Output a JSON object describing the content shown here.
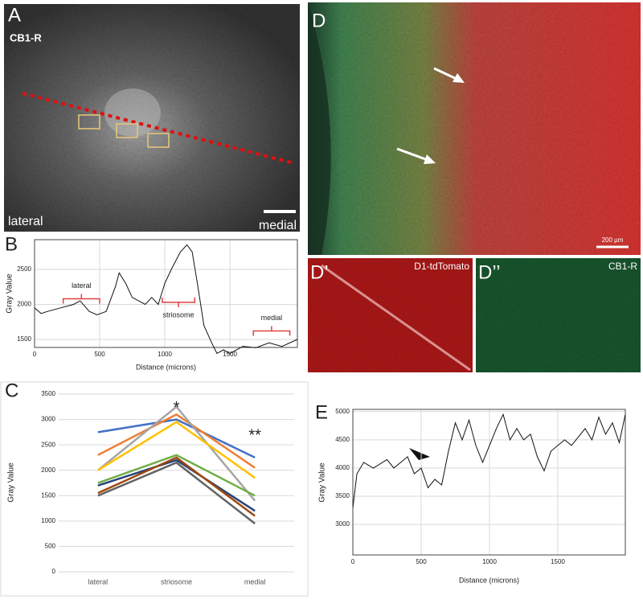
{
  "panels": {
    "A": {
      "label": "A",
      "stain": "CB1-R",
      "left": "lateral",
      "right": "medial"
    },
    "D": {
      "label": "D",
      "scale": "200 µm"
    },
    "D1": {
      "label": "D’",
      "stain": "D1-tdTomato"
    },
    "D2": {
      "label": "D’’",
      "stain": "CB1-R"
    }
  },
  "chart_data": [
    {
      "type": "line",
      "label": "B",
      "y_label": "Gray Value",
      "x_label": "Distance (microns)",
      "x": [
        0,
        50,
        100,
        200,
        300,
        350,
        420,
        480,
        550,
        620,
        650,
        700,
        750,
        850,
        900,
        950,
        1000,
        1050,
        1120,
        1170,
        1210,
        1250,
        1300,
        1360,
        1400,
        1450,
        1500,
        1600,
        1700,
        1800,
        1900,
        2018
      ],
      "series": [
        {
          "color": "#111111",
          "values": [
            1950,
            1870,
            1900,
            1950,
            2000,
            2050,
            1900,
            1850,
            1900,
            2250,
            2450,
            2300,
            2100,
            2000,
            2100,
            2000,
            2300,
            2500,
            2750,
            2850,
            2750,
            2300,
            1700,
            1450,
            1300,
            1350,
            1300,
            1400,
            1380,
            1450,
            1400,
            1500
          ]
        }
      ],
      "xlim": [
        0,
        2018
      ],
      "xticks": [
        0,
        500,
        1000,
        1500
      ],
      "ylim": [
        1385,
        2925
      ],
      "yticks": [
        1500,
        2000,
        2500
      ],
      "grid": true,
      "annotations": [
        "lateral",
        "striosome",
        "medial"
      ]
    },
    {
      "type": "category-line",
      "label": "C",
      "y_label": "Gray Value",
      "categories": [
        "lateral",
        "striosome",
        "medial"
      ],
      "series": [
        {
          "color": "#4472c4",
          "values": [
            2750,
            3000,
            2250
          ]
        },
        {
          "color": "#ed7d31",
          "values": [
            2300,
            3100,
            2050
          ]
        },
        {
          "color": "#a5a5a5",
          "values": [
            2000,
            3250,
            1400
          ]
        },
        {
          "color": "#ffc000",
          "values": [
            2000,
            2950,
            1850
          ]
        },
        {
          "color": "#70ad47",
          "values": [
            1750,
            2300,
            1500
          ]
        },
        {
          "color": "#264478",
          "values": [
            1700,
            2200,
            1200
          ]
        },
        {
          "color": "#9e480e",
          "values": [
            1550,
            2250,
            1100
          ]
        },
        {
          "color": "#636363",
          "values": [
            1500,
            2150,
            950
          ]
        }
      ],
      "ylim": [
        0,
        3500
      ],
      "yticks": [
        0,
        500,
        1000,
        1500,
        2000,
        2500,
        3000,
        3500
      ],
      "grid": true,
      "annotations": [
        "*",
        "**"
      ]
    },
    {
      "type": "line",
      "label": "E",
      "y_label": "Gray Value",
      "x_label": "Distance (microns)",
      "x": [
        0,
        30,
        80,
        150,
        250,
        300,
        400,
        450,
        500,
        550,
        600,
        650,
        700,
        750,
        800,
        850,
        900,
        950,
        1050,
        1100,
        1150,
        1200,
        1250,
        1300,
        1350,
        1400,
        1450,
        1550,
        1600,
        1700,
        1750,
        1800,
        1850,
        1900,
        1950,
        1994
      ],
      "series": [
        {
          "color": "#111111",
          "values": [
            3300,
            3900,
            4100,
            4000,
            4150,
            4000,
            4200,
            3900,
            4000,
            3650,
            3800,
            3700,
            4300,
            4800,
            4500,
            4850,
            4400,
            4100,
            4700,
            4950,
            4500,
            4700,
            4500,
            4600,
            4200,
            3950,
            4300,
            4500,
            4400,
            4700,
            4500,
            4900,
            4600,
            4800,
            4450,
            4950
          ]
        }
      ],
      "xlim": [
        0,
        1994
      ],
      "xticks": [
        0,
        500,
        1000,
        1500
      ],
      "ylim": [
        2460,
        5040
      ],
      "yticks": [
        3000,
        3500,
        4000,
        4500,
        5000
      ],
      "grid": true
    }
  ]
}
